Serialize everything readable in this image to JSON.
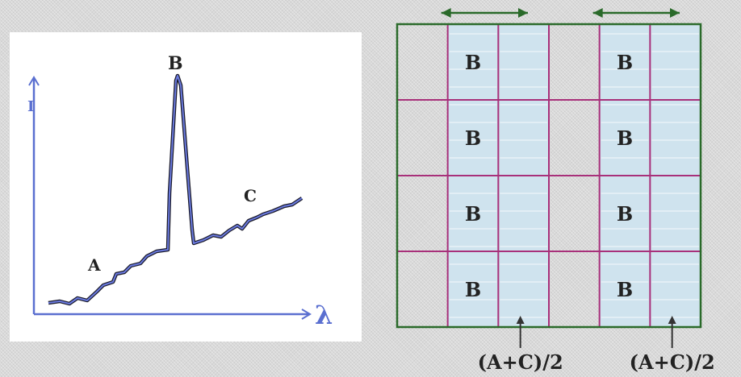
{
  "spectrum": {
    "y_axis_label": "I",
    "x_axis_label": "λ",
    "label_a": "A",
    "label_b": "B",
    "label_c": "C"
  },
  "grid": {
    "rows": 4,
    "columns": 6,
    "highlight_columns": [
      1,
      2,
      4,
      5
    ],
    "cell_b_label": "B",
    "mix_label": "(A+C)/2",
    "fill_color": "#cfe3ee",
    "line_color_b": "#a8307a",
    "line_color_frame": "#2a6a2a",
    "arrow_color": "#2a6a2a"
  }
}
